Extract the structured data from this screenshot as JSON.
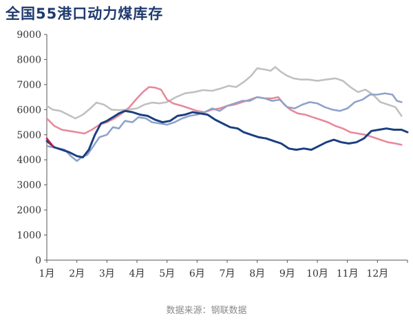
{
  "chart_data": {
    "type": "line",
    "title": "全国55港口动力煤库存",
    "source": "数据来源：钢联数据",
    "ylim": [
      0,
      9000
    ],
    "yticks": [
      "0",
      "1000",
      "2000",
      "3000",
      "4000",
      "5000",
      "6000",
      "7000",
      "8000",
      "9000"
    ],
    "xlim": [
      1,
      13
    ],
    "xticks": [
      "1月",
      "2月",
      "3月",
      "4月",
      "5月",
      "6月",
      "7月",
      "8月",
      "9月",
      "10月",
      "11月",
      "12月"
    ],
    "grid": false,
    "legend": "none",
    "series": [
      {
        "color": "#c0c0c0",
        "points": [
          [
            1.0,
            6150
          ],
          [
            1.2,
            6000
          ],
          [
            1.45,
            5950
          ],
          [
            1.7,
            5800
          ],
          [
            1.95,
            5650
          ],
          [
            2.2,
            5800
          ],
          [
            2.45,
            6050
          ],
          [
            2.65,
            6280
          ],
          [
            2.9,
            6200
          ],
          [
            3.15,
            6000
          ],
          [
            3.4,
            5980
          ],
          [
            3.7,
            6000
          ],
          [
            4.0,
            6050
          ],
          [
            4.25,
            6200
          ],
          [
            4.5,
            6280
          ],
          [
            4.75,
            6250
          ],
          [
            5.0,
            6300
          ],
          [
            5.3,
            6500
          ],
          [
            5.6,
            6650
          ],
          [
            5.9,
            6700
          ],
          [
            6.2,
            6780
          ],
          [
            6.5,
            6750
          ],
          [
            6.8,
            6850
          ],
          [
            7.05,
            6950
          ],
          [
            7.3,
            6900
          ],
          [
            7.55,
            7100
          ],
          [
            7.8,
            7350
          ],
          [
            8.0,
            7650
          ],
          [
            8.25,
            7600
          ],
          [
            8.45,
            7550
          ],
          [
            8.6,
            7700
          ],
          [
            8.8,
            7500
          ],
          [
            9.0,
            7350
          ],
          [
            9.2,
            7250
          ],
          [
            9.45,
            7200
          ],
          [
            9.7,
            7200
          ],
          [
            10.0,
            7150
          ],
          [
            10.3,
            7200
          ],
          [
            10.6,
            7250
          ],
          [
            10.85,
            7150
          ],
          [
            11.1,
            6900
          ],
          [
            11.35,
            6700
          ],
          [
            11.6,
            6800
          ],
          [
            11.85,
            6600
          ],
          [
            12.1,
            6300
          ],
          [
            12.35,
            6200
          ],
          [
            12.6,
            6100
          ],
          [
            12.8,
            5750
          ]
        ]
      },
      {
        "color": "#e8889a",
        "points": [
          [
            1.0,
            5650
          ],
          [
            1.25,
            5350
          ],
          [
            1.5,
            5200
          ],
          [
            1.75,
            5150
          ],
          [
            2.0,
            5100
          ],
          [
            2.25,
            5050
          ],
          [
            2.5,
            5200
          ],
          [
            2.75,
            5400
          ],
          [
            3.0,
            5500
          ],
          [
            3.25,
            5650
          ],
          [
            3.5,
            5850
          ],
          [
            3.75,
            6100
          ],
          [
            4.0,
            6450
          ],
          [
            4.2,
            6700
          ],
          [
            4.4,
            6900
          ],
          [
            4.6,
            6880
          ],
          [
            4.8,
            6800
          ],
          [
            5.0,
            6400
          ],
          [
            5.2,
            6250
          ],
          [
            5.5,
            6150
          ],
          [
            5.75,
            6050
          ],
          [
            6.0,
            5950
          ],
          [
            6.25,
            5900
          ],
          [
            6.5,
            6000
          ],
          [
            6.75,
            6050
          ],
          [
            7.0,
            6150
          ],
          [
            7.25,
            6200
          ],
          [
            7.5,
            6300
          ],
          [
            7.75,
            6400
          ],
          [
            8.0,
            6500
          ],
          [
            8.25,
            6450
          ],
          [
            8.5,
            6450
          ],
          [
            8.7,
            6500
          ],
          [
            8.9,
            6200
          ],
          [
            9.1,
            6000
          ],
          [
            9.35,
            5850
          ],
          [
            9.6,
            5800
          ],
          [
            9.85,
            5700
          ],
          [
            10.1,
            5600
          ],
          [
            10.35,
            5500
          ],
          [
            10.6,
            5350
          ],
          [
            10.85,
            5250
          ],
          [
            11.1,
            5100
          ],
          [
            11.35,
            5050
          ],
          [
            11.6,
            5000
          ],
          [
            11.85,
            4900
          ],
          [
            12.1,
            4800
          ],
          [
            12.35,
            4700
          ],
          [
            12.6,
            4650
          ],
          [
            12.8,
            4600
          ]
        ]
      },
      {
        "color": "#8fa2c8",
        "points": [
          [
            1.0,
            4550
          ],
          [
            1.2,
            4500
          ],
          [
            1.4,
            4450
          ],
          [
            1.6,
            4400
          ],
          [
            1.8,
            4150
          ],
          [
            2.0,
            3950
          ],
          [
            2.15,
            4100
          ],
          [
            2.35,
            4200
          ],
          [
            2.55,
            4550
          ],
          [
            2.75,
            4900
          ],
          [
            3.0,
            5000
          ],
          [
            3.2,
            5300
          ],
          [
            3.4,
            5250
          ],
          [
            3.6,
            5550
          ],
          [
            3.85,
            5500
          ],
          [
            4.05,
            5700
          ],
          [
            4.3,
            5650
          ],
          [
            4.5,
            5500
          ],
          [
            4.75,
            5450
          ],
          [
            5.0,
            5400
          ],
          [
            5.25,
            5500
          ],
          [
            5.5,
            5650
          ],
          [
            5.75,
            5750
          ],
          [
            6.0,
            5800
          ],
          [
            6.25,
            5900
          ],
          [
            6.5,
            6050
          ],
          [
            6.75,
            5950
          ],
          [
            7.0,
            6150
          ],
          [
            7.25,
            6250
          ],
          [
            7.5,
            6350
          ],
          [
            7.75,
            6350
          ],
          [
            8.0,
            6500
          ],
          [
            8.25,
            6450
          ],
          [
            8.5,
            6350
          ],
          [
            8.75,
            6400
          ],
          [
            9.0,
            6100
          ],
          [
            9.25,
            6050
          ],
          [
            9.5,
            6200
          ],
          [
            9.75,
            6300
          ],
          [
            10.0,
            6250
          ],
          [
            10.25,
            6100
          ],
          [
            10.5,
            6000
          ],
          [
            10.75,
            5950
          ],
          [
            11.0,
            6050
          ],
          [
            11.25,
            6300
          ],
          [
            11.5,
            6400
          ],
          [
            11.75,
            6600
          ],
          [
            12.0,
            6600
          ],
          [
            12.25,
            6650
          ],
          [
            12.5,
            6600
          ],
          [
            12.65,
            6350
          ],
          [
            12.8,
            6300
          ]
        ]
      },
      {
        "color": "#1a3f80",
        "points": [
          [
            1.0,
            4750
          ],
          [
            1.25,
            4500
          ],
          [
            1.5,
            4400
          ],
          [
            1.75,
            4300
          ],
          [
            2.0,
            4150
          ],
          [
            2.2,
            4100
          ],
          [
            2.4,
            4400
          ],
          [
            2.6,
            5000
          ],
          [
            2.8,
            5450
          ],
          [
            3.0,
            5550
          ],
          [
            3.2,
            5700
          ],
          [
            3.4,
            5850
          ],
          [
            3.6,
            5950
          ],
          [
            3.85,
            5900
          ],
          [
            4.1,
            5800
          ],
          [
            4.35,
            5750
          ],
          [
            4.6,
            5600
          ],
          [
            4.85,
            5500
          ],
          [
            5.1,
            5550
          ],
          [
            5.35,
            5750
          ],
          [
            5.6,
            5800
          ],
          [
            5.85,
            5900
          ],
          [
            6.1,
            5850
          ],
          [
            6.35,
            5800
          ],
          [
            6.6,
            5600
          ],
          [
            6.85,
            5450
          ],
          [
            7.1,
            5300
          ],
          [
            7.35,
            5250
          ],
          [
            7.55,
            5100
          ],
          [
            7.8,
            5000
          ],
          [
            8.05,
            4900
          ],
          [
            8.3,
            4850
          ],
          [
            8.55,
            4750
          ],
          [
            8.8,
            4650
          ],
          [
            9.05,
            4450
          ],
          [
            9.3,
            4400
          ],
          [
            9.55,
            4450
          ],
          [
            9.8,
            4400
          ],
          [
            10.05,
            4550
          ],
          [
            10.3,
            4700
          ],
          [
            10.55,
            4800
          ],
          [
            10.8,
            4700
          ],
          [
            11.05,
            4650
          ],
          [
            11.3,
            4700
          ],
          [
            11.55,
            4850
          ],
          [
            11.8,
            5150
          ],
          [
            12.05,
            5200
          ],
          [
            12.3,
            5250
          ],
          [
            12.55,
            5200
          ],
          [
            12.8,
            5200
          ],
          [
            13.0,
            5100
          ]
        ]
      },
      {
        "color": "#c41e3a",
        "points": [
          [
            1.0,
            4850
          ],
          [
            1.1,
            4700
          ],
          [
            1.2,
            4550
          ]
        ]
      }
    ]
  }
}
